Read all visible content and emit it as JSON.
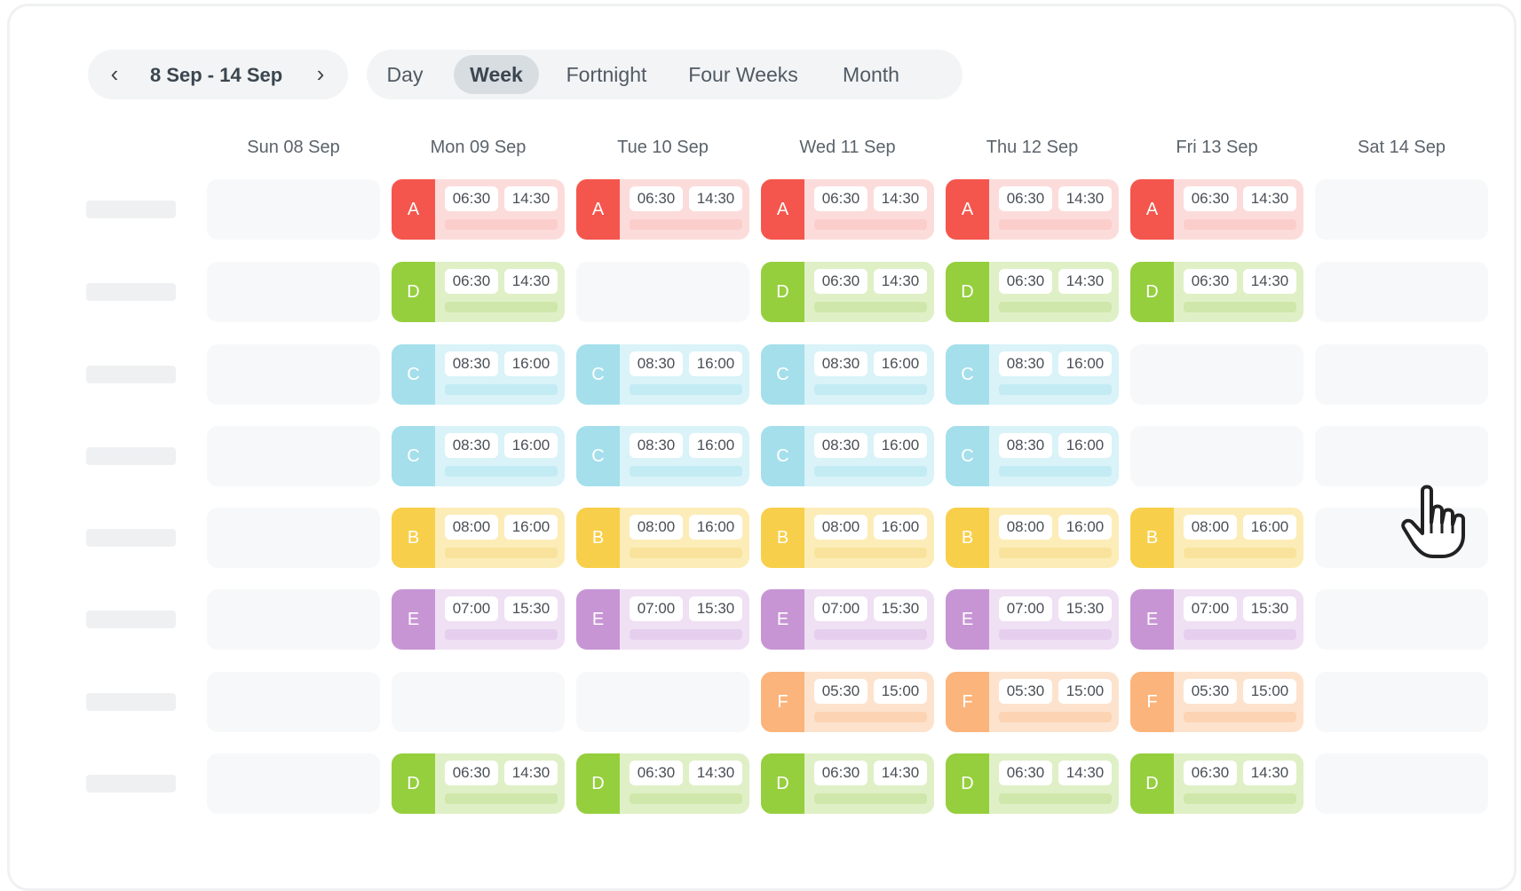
{
  "date_range": {
    "label": "8 Sep - 14 Sep",
    "prev_icon": "‹",
    "next_icon": "›"
  },
  "view_tabs": [
    {
      "label": "Day",
      "active": false
    },
    {
      "label": "Week",
      "active": true
    },
    {
      "label": "Fortnight",
      "active": false
    },
    {
      "label": "Four Weeks",
      "active": false
    },
    {
      "label": "Month",
      "active": false
    }
  ],
  "days": [
    "Sun 08 Sep",
    "Mon 09 Sep",
    "Tue 10 Sep",
    "Wed 11 Sep",
    "Thu 12 Sep",
    "Fri 13 Sep",
    "Sat 14 Sep"
  ],
  "shift_types": {
    "A": {
      "start": "06:30",
      "end": "14:30",
      "badge": "#f4564d",
      "bg": "#fcdcdb",
      "bar": "#fbcdcb"
    },
    "D": {
      "start": "06:30",
      "end": "14:30",
      "badge": "#95cf3d",
      "bg": "#dff0c6",
      "bar": "#cfe7aa"
    },
    "C": {
      "start": "08:30",
      "end": "16:00",
      "badge": "#a5dfeb",
      "bg": "#d9f3f8",
      "bar": "#c3ebf3"
    },
    "B": {
      "start": "08:00",
      "end": "16:00",
      "badge": "#f7cf4a",
      "bg": "#fcedb8",
      "bar": "#f9e39c"
    },
    "E": {
      "start": "07:00",
      "end": "15:30",
      "badge": "#c795d4",
      "bg": "#efe0f4",
      "bar": "#e6cfee"
    },
    "F": {
      "start": "05:30",
      "end": "15:00",
      "badge": "#fbb47b",
      "bg": "#fde3cd",
      "bar": "#fcd4b3"
    }
  },
  "rows": [
    [
      null,
      "A",
      "A",
      "A",
      "A",
      "A",
      null
    ],
    [
      null,
      "D",
      null,
      "D",
      "D",
      "D",
      null
    ],
    [
      null,
      "C",
      "C",
      "C",
      "C",
      null,
      null
    ],
    [
      null,
      "C",
      "C",
      "C",
      "C",
      null,
      null
    ],
    [
      null,
      "B",
      "B",
      "B",
      "B",
      "B",
      null
    ],
    [
      null,
      "E",
      "E",
      "E",
      "E",
      "E",
      null
    ],
    [
      null,
      null,
      null,
      "F",
      "F",
      "F",
      null
    ],
    [
      null,
      "D",
      "D",
      "D",
      "D",
      "D",
      null
    ]
  ]
}
